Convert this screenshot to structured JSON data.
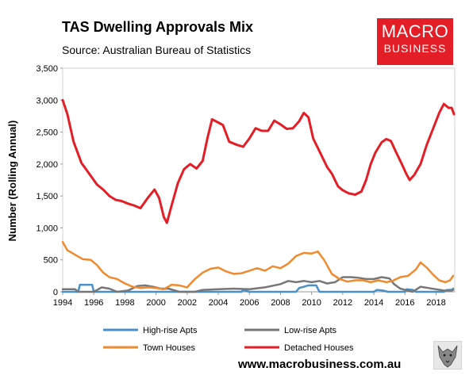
{
  "header": {
    "title": "TAS Dwelling Approvals Mix",
    "subtitle": "Source: Australian Bureau of Statistics"
  },
  "logo": {
    "line1": "MACRO",
    "line2": "BUSINESS",
    "color": "#e41e26"
  },
  "footer": {
    "website": "www.macrobusiness.com.au"
  },
  "chart_data": {
    "type": "line",
    "ylabel": "Number (Rolling Annual)",
    "xlabel": "",
    "xlim": [
      1994,
      2019.2
    ],
    "ylim": [
      0,
      3500
    ],
    "x_ticks": [
      "1994",
      "1996",
      "1998",
      "2000",
      "2002",
      "2004",
      "2006",
      "2008",
      "2010",
      "2012",
      "2014",
      "2016",
      "2018"
    ],
    "y_ticks": [
      "0",
      "500",
      "1,000",
      "1,500",
      "2,000",
      "2,500",
      "3,000",
      "3,500"
    ],
    "grid": false,
    "legend_position": "bottom",
    "series": [
      {
        "name": "High-rise Apts",
        "color": "#4a90c8",
        "points": [
          [
            1994,
            0
          ],
          [
            1995,
            0
          ],
          [
            1995.1,
            110
          ],
          [
            1995.9,
            110
          ],
          [
            1996,
            0
          ],
          [
            2005.5,
            0
          ],
          [
            2005.6,
            30
          ],
          [
            2006,
            0
          ],
          [
            2009,
            0
          ],
          [
            2009.2,
            60
          ],
          [
            2009.8,
            100
          ],
          [
            2010.3,
            100
          ],
          [
            2010.5,
            0
          ],
          [
            2014,
            0
          ],
          [
            2014.2,
            30
          ],
          [
            2014.6,
            20
          ],
          [
            2014.9,
            0
          ],
          [
            2016,
            0
          ],
          [
            2016.1,
            40
          ],
          [
            2016.5,
            30
          ],
          [
            2016.7,
            0
          ],
          [
            2018.5,
            0
          ],
          [
            2018.7,
            30
          ],
          [
            2019,
            30
          ],
          [
            2019.1,
            50
          ]
        ]
      },
      {
        "name": "Low-rise Apts",
        "color": "#777777",
        "points": [
          [
            1994,
            40
          ],
          [
            1994.8,
            40
          ],
          [
            1995,
            0
          ],
          [
            1996,
            0
          ],
          [
            1996.5,
            70
          ],
          [
            1997,
            50
          ],
          [
            1997.5,
            0
          ],
          [
            1998.2,
            20
          ],
          [
            1998.8,
            90
          ],
          [
            1999.3,
            100
          ],
          [
            1999.8,
            80
          ],
          [
            2000.3,
            50
          ],
          [
            2000.8,
            50
          ],
          [
            2001.5,
            0
          ],
          [
            2002.5,
            0
          ],
          [
            2003,
            30
          ],
          [
            2004,
            40
          ],
          [
            2005,
            50
          ],
          [
            2006,
            40
          ],
          [
            2007,
            70
          ],
          [
            2008,
            120
          ],
          [
            2008.5,
            170
          ],
          [
            2009,
            150
          ],
          [
            2009.5,
            170
          ],
          [
            2010,
            150
          ],
          [
            2010.5,
            170
          ],
          [
            2011,
            130
          ],
          [
            2011.5,
            150
          ],
          [
            2012,
            230
          ],
          [
            2012.5,
            230
          ],
          [
            2013,
            220
          ],
          [
            2013.5,
            200
          ],
          [
            2014,
            200
          ],
          [
            2014.5,
            230
          ],
          [
            2015,
            210
          ],
          [
            2015.3,
            120
          ],
          [
            2015.7,
            50
          ],
          [
            2016,
            30
          ],
          [
            2016.5,
            0
          ],
          [
            2017,
            80
          ],
          [
            2017.5,
            60
          ],
          [
            2018,
            40
          ],
          [
            2018.5,
            20
          ],
          [
            2019,
            20
          ],
          [
            2019.1,
            30
          ]
        ]
      },
      {
        "name": "Town Houses",
        "color": "#f08a2e",
        "points": [
          [
            1994,
            780
          ],
          [
            1994.3,
            650
          ],
          [
            1994.8,
            580
          ],
          [
            1995.3,
            510
          ],
          [
            1995.8,
            500
          ],
          [
            1996.2,
            420
          ],
          [
            1996.6,
            300
          ],
          [
            1997,
            230
          ],
          [
            1997.5,
            200
          ],
          [
            1998,
            130
          ],
          [
            1998.5,
            80
          ],
          [
            1999,
            60
          ],
          [
            1999.5,
            70
          ],
          [
            2000,
            60
          ],
          [
            2000.5,
            40
          ],
          [
            2001,
            110
          ],
          [
            2001.5,
            100
          ],
          [
            2002,
            70
          ],
          [
            2002.5,
            200
          ],
          [
            2003,
            300
          ],
          [
            2003.5,
            360
          ],
          [
            2004,
            380
          ],
          [
            2004.5,
            320
          ],
          [
            2005,
            280
          ],
          [
            2005.5,
            290
          ],
          [
            2006,
            330
          ],
          [
            2006.5,
            370
          ],
          [
            2007,
            330
          ],
          [
            2007.5,
            400
          ],
          [
            2008,
            370
          ],
          [
            2008.5,
            440
          ],
          [
            2009,
            560
          ],
          [
            2009.5,
            610
          ],
          [
            2010,
            600
          ],
          [
            2010.4,
            630
          ],
          [
            2010.8,
            500
          ],
          [
            2011.3,
            280
          ],
          [
            2011.8,
            200
          ],
          [
            2012.3,
            160
          ],
          [
            2012.8,
            180
          ],
          [
            2013.3,
            180
          ],
          [
            2013.8,
            150
          ],
          [
            2014.3,
            180
          ],
          [
            2014.8,
            150
          ],
          [
            2015.2,
            170
          ],
          [
            2015.7,
            230
          ],
          [
            2016.2,
            250
          ],
          [
            2016.7,
            350
          ],
          [
            2017,
            460
          ],
          [
            2017.4,
            380
          ],
          [
            2017.8,
            270
          ],
          [
            2018.2,
            180
          ],
          [
            2018.6,
            150
          ],
          [
            2018.9,
            180
          ],
          [
            2019.1,
            250
          ]
        ]
      },
      {
        "name": "Detached Houses",
        "color": "#e41e26",
        "points": [
          [
            1994,
            3000
          ],
          [
            1994.3,
            2780
          ],
          [
            1994.7,
            2350
          ],
          [
            1995.2,
            2020
          ],
          [
            1995.7,
            1850
          ],
          [
            1996.2,
            1680
          ],
          [
            1996.6,
            1600
          ],
          [
            1997,
            1500
          ],
          [
            1997.4,
            1440
          ],
          [
            1997.8,
            1420
          ],
          [
            1998.2,
            1380
          ],
          [
            1998.6,
            1350
          ],
          [
            1999,
            1310
          ],
          [
            1999.5,
            1480
          ],
          [
            1999.9,
            1600
          ],
          [
            2000.2,
            1470
          ],
          [
            2000.5,
            1170
          ],
          [
            2000.7,
            1080
          ],
          [
            2001,
            1350
          ],
          [
            2001.4,
            1700
          ],
          [
            2001.8,
            1920
          ],
          [
            2002.2,
            2000
          ],
          [
            2002.6,
            1930
          ],
          [
            2003,
            2050
          ],
          [
            2003.3,
            2400
          ],
          [
            2003.6,
            2700
          ],
          [
            2004,
            2650
          ],
          [
            2004.3,
            2610
          ],
          [
            2004.7,
            2350
          ],
          [
            2005.2,
            2300
          ],
          [
            2005.6,
            2270
          ],
          [
            2006,
            2400
          ],
          [
            2006.4,
            2560
          ],
          [
            2006.8,
            2520
          ],
          [
            2007.2,
            2520
          ],
          [
            2007.6,
            2680
          ],
          [
            2008,
            2620
          ],
          [
            2008.4,
            2550
          ],
          [
            2008.8,
            2560
          ],
          [
            2009.2,
            2670
          ],
          [
            2009.5,
            2800
          ],
          [
            2009.8,
            2730
          ],
          [
            2010.1,
            2400
          ],
          [
            2010.5,
            2200
          ],
          [
            2011,
            1950
          ],
          [
            2011.3,
            1850
          ],
          [
            2011.7,
            1650
          ],
          [
            2012,
            1590
          ],
          [
            2012.4,
            1540
          ],
          [
            2012.8,
            1520
          ],
          [
            2013.2,
            1570
          ],
          [
            2013.5,
            1750
          ],
          [
            2013.8,
            2000
          ],
          [
            2014.1,
            2180
          ],
          [
            2014.5,
            2340
          ],
          [
            2014.8,
            2390
          ],
          [
            2015.1,
            2360
          ],
          [
            2015.4,
            2200
          ],
          [
            2015.8,
            2000
          ],
          [
            2016.1,
            1840
          ],
          [
            2016.3,
            1750
          ],
          [
            2016.6,
            1830
          ],
          [
            2017,
            2000
          ],
          [
            2017.4,
            2300
          ],
          [
            2017.8,
            2550
          ],
          [
            2018.2,
            2800
          ],
          [
            2018.5,
            2940
          ],
          [
            2018.8,
            2880
          ],
          [
            2019,
            2880
          ],
          [
            2019.15,
            2780
          ]
        ]
      }
    ]
  }
}
